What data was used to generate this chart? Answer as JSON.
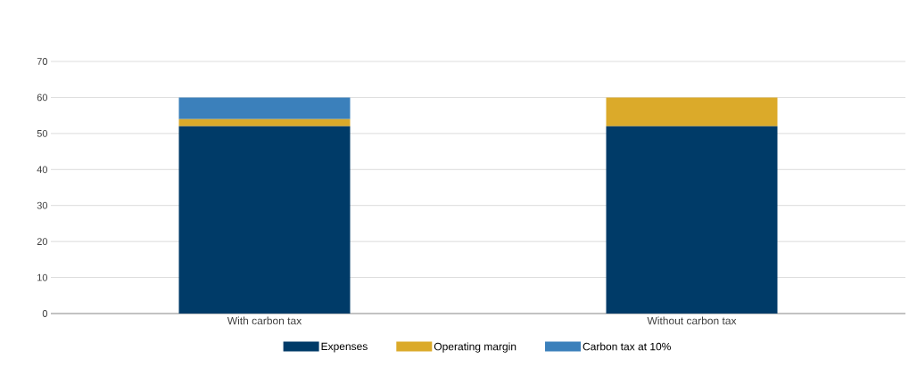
{
  "chart_data": {
    "type": "bar",
    "stacked": true,
    "categories": [
      "With carbon tax",
      "Without carbon tax"
    ],
    "series": [
      {
        "name": "Expenses",
        "color": "#003b68",
        "values": [
          52,
          52
        ]
      },
      {
        "name": "Operating margin",
        "color": "#dbaa2a",
        "values": [
          2,
          8
        ]
      },
      {
        "name": "Carbon tax at 10%",
        "color": "#3b80bb",
        "values": [
          6,
          0
        ]
      }
    ],
    "ylim": [
      0,
      70
    ],
    "yticks": [
      0,
      10,
      20,
      30,
      40,
      50,
      60,
      70
    ],
    "grid": "y",
    "legend": "bottom"
  }
}
